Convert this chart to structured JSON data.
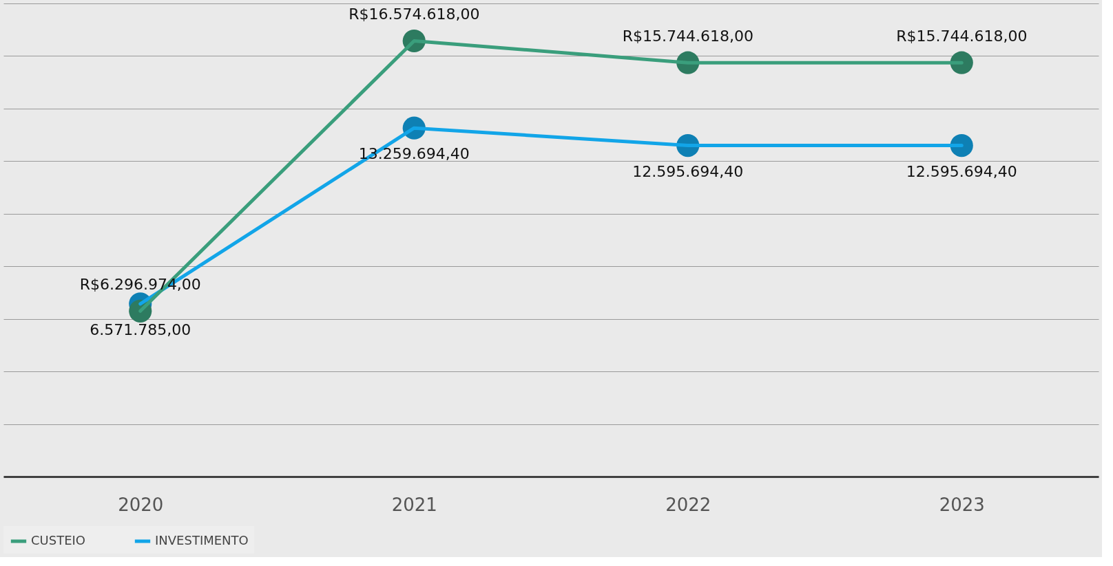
{
  "chart_data": {
    "type": "line",
    "categories": [
      "2020",
      "2021",
      "2022",
      "2023"
    ],
    "series": [
      {
        "name": "CUSTEIO",
        "color": "#3a9e7c",
        "values": [
          6296974,
          16574618,
          15744618,
          15744618
        ],
        "value_labels": [
          "R$6.296.974,00",
          "R$16.574.618,00",
          "R$15.744.618,00",
          "R$15.744.618,00"
        ]
      },
      {
        "name": "INVESTIMENTO",
        "color": "#12a5e8",
        "values": [
          6571785,
          13259694.4,
          12595694.4,
          12595694.4
        ],
        "value_labels": [
          "6.571.785,00",
          "13.259.694,40",
          "12.595.694,40",
          "12.595.694,40"
        ]
      }
    ],
    "ylim": [
      0,
      18000000
    ],
    "yticks": [
      {
        "value": 0,
        "label": null
      },
      {
        "value": 2000000,
        "label": null
      },
      {
        "value": 4000000,
        "label": null
      },
      {
        "value": 6000000,
        "label": null
      },
      {
        "value": 8000000,
        "label": null
      },
      {
        "value": 10000000,
        "label": null
      },
      {
        "value": 12000000,
        "label": null
      },
      {
        "value": 14000000,
        "label": null
      },
      {
        "value": 16000000,
        "label": null
      },
      {
        "value": 18000000,
        "label": null
      }
    ],
    "tick_labels": "x",
    "grid": "y",
    "legend": "bottom",
    "marker": "circle",
    "line_style": "solid"
  }
}
